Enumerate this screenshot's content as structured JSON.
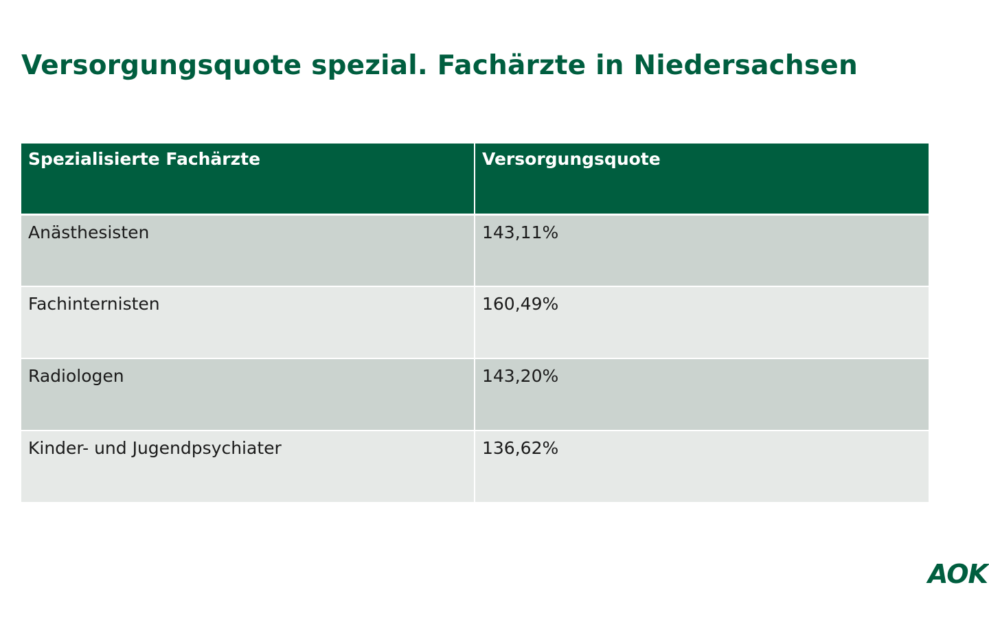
{
  "title": "Versorgungsquote spezial. Fachärzte in Niedersachsen",
  "table": {
    "headers": [
      "Spezialisierte Fachärzte",
      "Versorgungsquote"
    ],
    "rows": [
      {
        "fachgruppe": "Anästhesisten",
        "quote": "143,11%"
      },
      {
        "fachgruppe": "Fachinternisten",
        "quote": "160,49%"
      },
      {
        "fachgruppe": "Radiologen",
        "quote": "143,20%"
      },
      {
        "fachgruppe": "Kinder- und Jugendpsychiater",
        "quote": "136,62%"
      }
    ]
  },
  "logo": "AOK",
  "colors": {
    "brand_green": "#005e3f",
    "row_dark": "#cbd3cf",
    "row_light": "#e6e9e7"
  }
}
